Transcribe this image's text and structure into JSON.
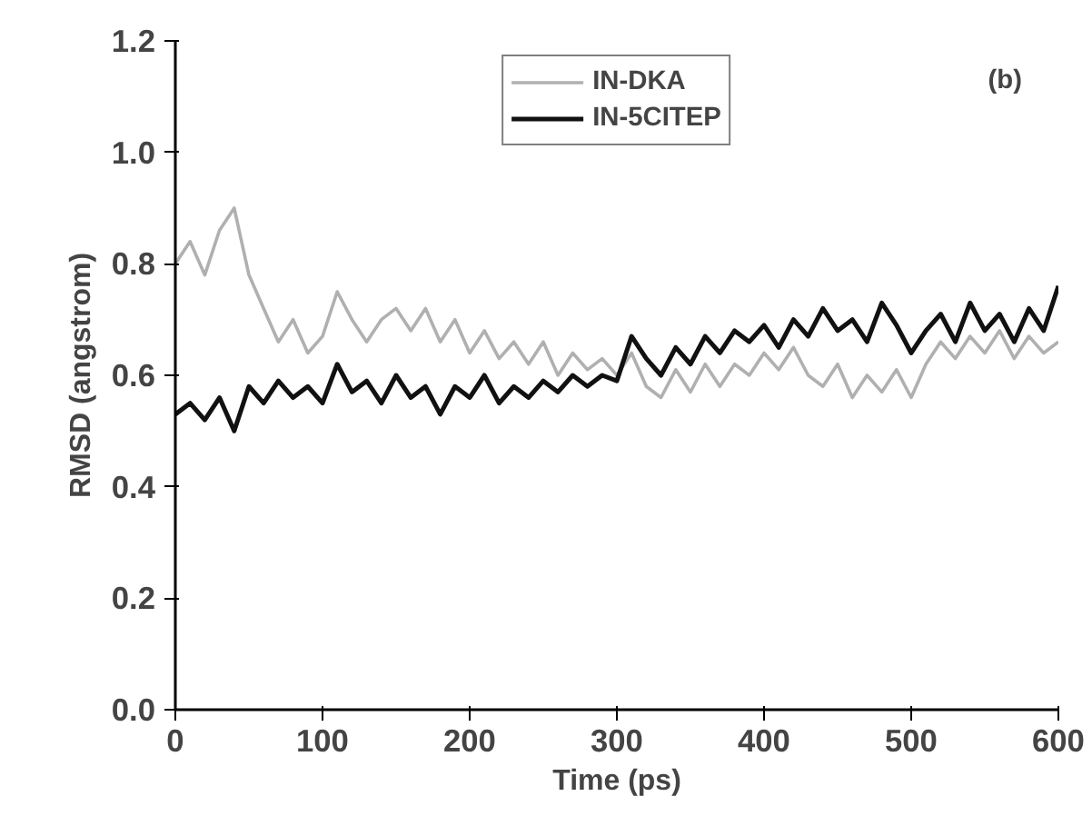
{
  "chart_data": {
    "type": "line",
    "xlabel": "Time (ps)",
    "ylabel": "RMSD (angstrom)",
    "annotations": [
      "(b)"
    ],
    "x": [
      0,
      10,
      20,
      30,
      40,
      50,
      60,
      70,
      80,
      90,
      100,
      110,
      120,
      130,
      140,
      150,
      160,
      170,
      180,
      190,
      200,
      210,
      220,
      230,
      240,
      250,
      260,
      270,
      280,
      290,
      300,
      310,
      320,
      330,
      340,
      350,
      360,
      370,
      380,
      390,
      400,
      410,
      420,
      430,
      440,
      450,
      460,
      470,
      480,
      490,
      500,
      510,
      520,
      530,
      540,
      550,
      560,
      570,
      580,
      590,
      600
    ],
    "series": [
      {
        "name": "IN-DKA",
        "color": "#b0b0b0",
        "values": [
          0.8,
          0.84,
          0.78,
          0.86,
          0.9,
          0.78,
          0.72,
          0.66,
          0.7,
          0.64,
          0.67,
          0.75,
          0.7,
          0.66,
          0.7,
          0.72,
          0.68,
          0.72,
          0.66,
          0.7,
          0.64,
          0.68,
          0.63,
          0.66,
          0.62,
          0.66,
          0.6,
          0.64,
          0.61,
          0.63,
          0.6,
          0.64,
          0.58,
          0.56,
          0.61,
          0.57,
          0.62,
          0.58,
          0.62,
          0.6,
          0.64,
          0.61,
          0.65,
          0.6,
          0.58,
          0.62,
          0.56,
          0.6,
          0.57,
          0.61,
          0.56,
          0.62,
          0.66,
          0.63,
          0.67,
          0.64,
          0.68,
          0.63,
          0.67,
          0.64,
          0.66
        ]
      },
      {
        "name": "IN-5CITEP",
        "color": "#111111",
        "values": [
          0.53,
          0.55,
          0.52,
          0.56,
          0.5,
          0.58,
          0.55,
          0.59,
          0.56,
          0.58,
          0.55,
          0.62,
          0.57,
          0.59,
          0.55,
          0.6,
          0.56,
          0.58,
          0.53,
          0.58,
          0.56,
          0.6,
          0.55,
          0.58,
          0.56,
          0.59,
          0.57,
          0.6,
          0.58,
          0.6,
          0.59,
          0.67,
          0.63,
          0.6,
          0.65,
          0.62,
          0.67,
          0.64,
          0.68,
          0.66,
          0.69,
          0.65,
          0.7,
          0.67,
          0.72,
          0.68,
          0.7,
          0.66,
          0.73,
          0.69,
          0.64,
          0.68,
          0.71,
          0.66,
          0.73,
          0.68,
          0.71,
          0.66,
          0.72,
          0.68,
          0.76
        ]
      }
    ],
    "xlim": [
      0,
      600
    ],
    "xticks": [
      0,
      100,
      200,
      300,
      400,
      500,
      600
    ],
    "ylim": [
      0,
      1.2
    ],
    "yticks": [
      {
        "value": 0,
        "label": "0.0"
      },
      {
        "value": 0.2,
        "label": "0.2"
      },
      {
        "value": 0.4,
        "label": "0.4"
      },
      {
        "value": 0.6,
        "label": "0.6"
      },
      {
        "value": 0.8,
        "label": "0.8"
      },
      {
        "value": 1.0,
        "label": "1.0"
      },
      {
        "value": 1.2,
        "label": "1.2"
      }
    ],
    "legend": "top",
    "grid": false,
    "line_style": "solid",
    "marker": "none"
  }
}
